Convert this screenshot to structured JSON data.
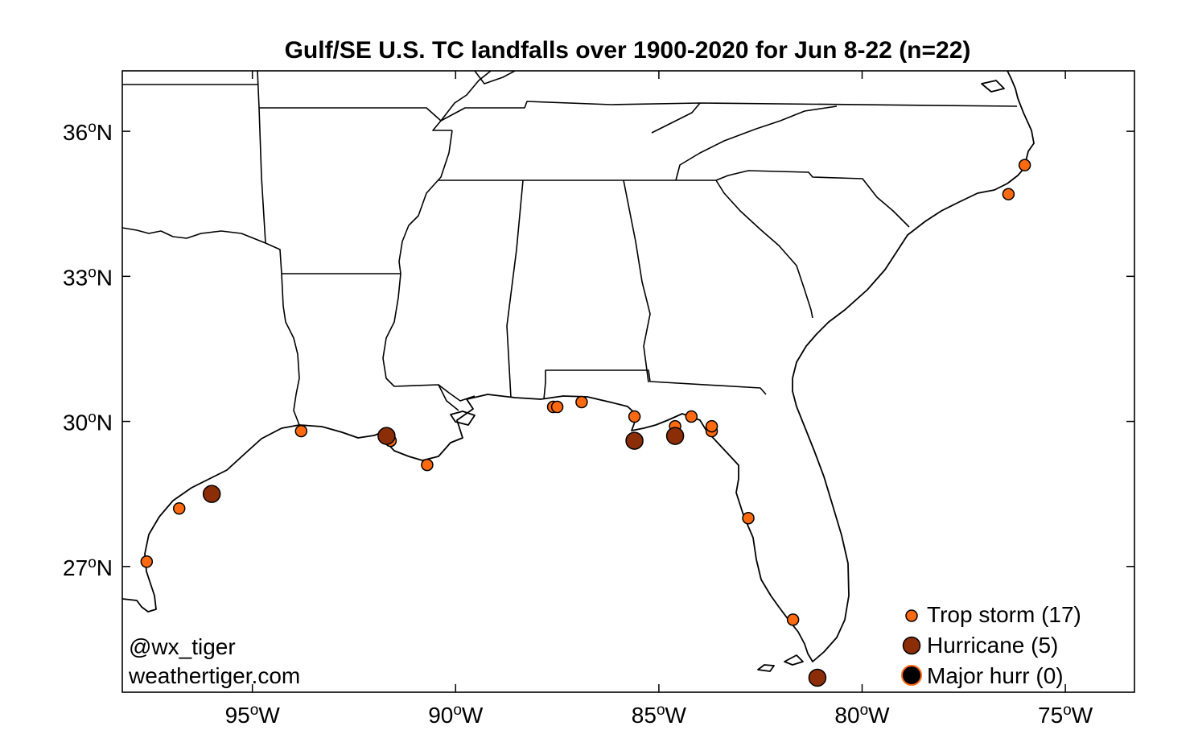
{
  "title": "Gulf/SE U.S. TC landfalls over 1900-2020 for Jun 8-22 (n=22)",
  "map_extent": {
    "lon_min": -98.2,
    "lon_max": -73.3,
    "lat_min": 24.4,
    "lat_max": 37.25
  },
  "lon_ticks": [
    {
      "value": -95,
      "deg": "95",
      "suffix": "W"
    },
    {
      "value": -90,
      "deg": "90",
      "suffix": "W"
    },
    {
      "value": -85,
      "deg": "85",
      "suffix": "W"
    },
    {
      "value": -80,
      "deg": "80",
      "suffix": "W"
    },
    {
      "value": -75,
      "deg": "75",
      "suffix": "W"
    }
  ],
  "lat_ticks": [
    {
      "value": 36,
      "deg": "36",
      "suffix": "N"
    },
    {
      "value": 33,
      "deg": "33",
      "suffix": "N"
    },
    {
      "value": 30,
      "deg": "30",
      "suffix": "N"
    },
    {
      "value": 27,
      "deg": "27",
      "suffix": "N"
    }
  ],
  "degree_symbol": "o",
  "credits": {
    "handle": "@wx_tiger",
    "site": "weathertiger.com"
  },
  "legend": {
    "trop_storm": "Trop storm (17)",
    "hurricane": "Hurricane (5)",
    "major": "Major hurr (0)"
  },
  "colors": {
    "trop_storm": "#ff6a10",
    "hurricane": "#8b2e08",
    "major_fill": "#000000",
    "major_edge": "#ff6a10",
    "lines": "#000000"
  },
  "landfalls": [
    {
      "category": "trop_storm",
      "lon": -97.6,
      "lat": 27.1
    },
    {
      "category": "trop_storm",
      "lon": -96.8,
      "lat": 28.2
    },
    {
      "category": "hurricane",
      "lon": -96.0,
      "lat": 28.5
    },
    {
      "category": "trop_storm",
      "lon": -93.8,
      "lat": 29.8
    },
    {
      "category": "hurricane",
      "lon": -91.7,
      "lat": 29.7
    },
    {
      "category": "trop_storm",
      "lon": -91.6,
      "lat": 29.6
    },
    {
      "category": "trop_storm",
      "lon": -90.7,
      "lat": 29.1
    },
    {
      "category": "trop_storm",
      "lon": -87.6,
      "lat": 30.3
    },
    {
      "category": "trop_storm",
      "lon": -87.5,
      "lat": 30.3
    },
    {
      "category": "trop_storm",
      "lon": -86.9,
      "lat": 30.4
    },
    {
      "category": "trop_storm",
      "lon": -85.6,
      "lat": 30.1
    },
    {
      "category": "hurricane",
      "lon": -85.6,
      "lat": 29.6
    },
    {
      "category": "trop_storm",
      "lon": -84.6,
      "lat": 29.9
    },
    {
      "category": "hurricane",
      "lon": -84.6,
      "lat": 29.7
    },
    {
      "category": "trop_storm",
      "lon": -84.2,
      "lat": 30.1
    },
    {
      "category": "trop_storm",
      "lon": -83.7,
      "lat": 29.8
    },
    {
      "category": "trop_storm",
      "lon": -83.7,
      "lat": 29.9
    },
    {
      "category": "trop_storm",
      "lon": -82.8,
      "lat": 28.0
    },
    {
      "category": "trop_storm",
      "lon": -81.7,
      "lat": 25.9
    },
    {
      "category": "hurricane",
      "lon": -81.1,
      "lat": 24.7
    },
    {
      "category": "trop_storm",
      "lon": -76.4,
      "lat": 34.7
    },
    {
      "category": "trop_storm",
      "lon": -76.0,
      "lat": 35.3
    }
  ]
}
